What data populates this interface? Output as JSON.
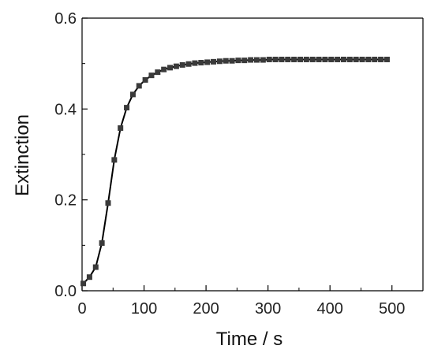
{
  "chart_data": {
    "type": "scatter",
    "xlabel": "Time / s",
    "ylabel": "Extinction",
    "xlim": [
      0,
      550
    ],
    "ylim": [
      0,
      0.6
    ],
    "xticks": [
      0,
      100,
      200,
      300,
      400,
      500
    ],
    "xtick_labels": [
      "0",
      "100",
      "200",
      "300",
      "400",
      "500"
    ],
    "yticks": [
      0.0,
      0.2,
      0.4,
      0.6
    ],
    "ytick_labels": [
      "0.0",
      "0.2",
      "0.4",
      "0.6"
    ],
    "grid": false,
    "legend": "none",
    "series": [
      {
        "x": [
          2,
          12,
          22,
          32,
          42,
          52,
          62,
          72,
          82,
          92,
          102,
          112,
          122,
          132,
          142,
          152,
          162,
          172,
          182,
          192,
          202,
          212,
          222,
          232,
          242,
          252,
          262,
          272,
          282,
          292,
          302,
          312,
          322,
          332,
          342,
          352,
          362,
          372,
          382,
          392,
          402,
          412,
          422,
          432,
          442,
          452,
          462,
          472,
          482,
          492
        ],
        "y": [
          0.016,
          0.03,
          0.052,
          0.105,
          0.193,
          0.288,
          0.358,
          0.403,
          0.432,
          0.451,
          0.464,
          0.474,
          0.481,
          0.487,
          0.491,
          0.494,
          0.497,
          0.499,
          0.501,
          0.502,
          0.503,
          0.504,
          0.505,
          0.506,
          0.506,
          0.507,
          0.507,
          0.508,
          0.508,
          0.508,
          0.509,
          0.509,
          0.509,
          0.509,
          0.509,
          0.509,
          0.509,
          0.509,
          0.509,
          0.509,
          0.509,
          0.509,
          0.509,
          0.509,
          0.509,
          0.509,
          0.509,
          0.509,
          0.509,
          0.509
        ],
        "marker": "square",
        "fit_line": true,
        "color": "#3a3a3a"
      }
    ]
  },
  "colors": {
    "axis": "#000000",
    "marker": "#3a3a3a",
    "line": "#000000"
  }
}
